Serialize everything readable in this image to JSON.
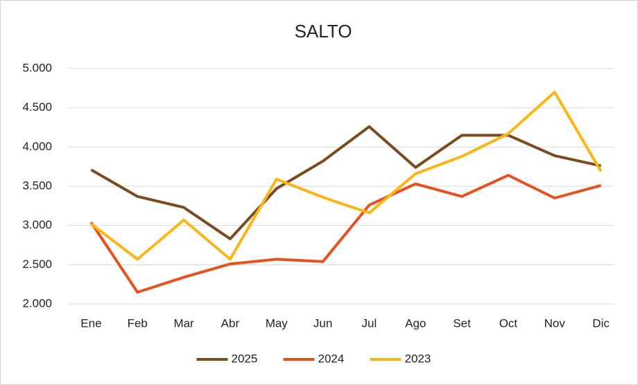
{
  "chart_data": {
    "type": "line",
    "title": "SALTO",
    "categories": [
      "Ene",
      "Feb",
      "Mar",
      "Abr",
      "May",
      "Jun",
      "Jul",
      "Ago",
      "Set",
      "Oct",
      "Nov",
      "Dic"
    ],
    "series": [
      {
        "name": "2025",
        "color": "#7b4a1e",
        "values": [
          3710,
          3370,
          3230,
          2830,
          3470,
          3820,
          4260,
          3740,
          4150,
          4150,
          3890,
          3760
        ]
      },
      {
        "name": "2024",
        "color": "#e8501d",
        "values": [
          3040,
          2150,
          2340,
          2510,
          2570,
          2540,
          3260,
          3530,
          3370,
          3640,
          3350,
          3510
        ]
      },
      {
        "name": "2023",
        "color": "#fdb515",
        "values": [
          3020,
          2570,
          3070,
          2570,
          3590,
          3360,
          3160,
          3660,
          3880,
          4170,
          4700,
          3690
        ]
      }
    ],
    "ylim": [
      2000,
      5000
    ],
    "yticks": [
      {
        "value": 2000,
        "label": "2.000"
      },
      {
        "value": 2500,
        "label": "2.500"
      },
      {
        "value": 3000,
        "label": "3.000"
      },
      {
        "value": 3500,
        "label": "3.500"
      },
      {
        "value": 4000,
        "label": "4.000"
      },
      {
        "value": 4500,
        "label": "4.500"
      },
      {
        "value": 5000,
        "label": "5.000"
      }
    ],
    "grid": true,
    "legend": "bottom"
  }
}
